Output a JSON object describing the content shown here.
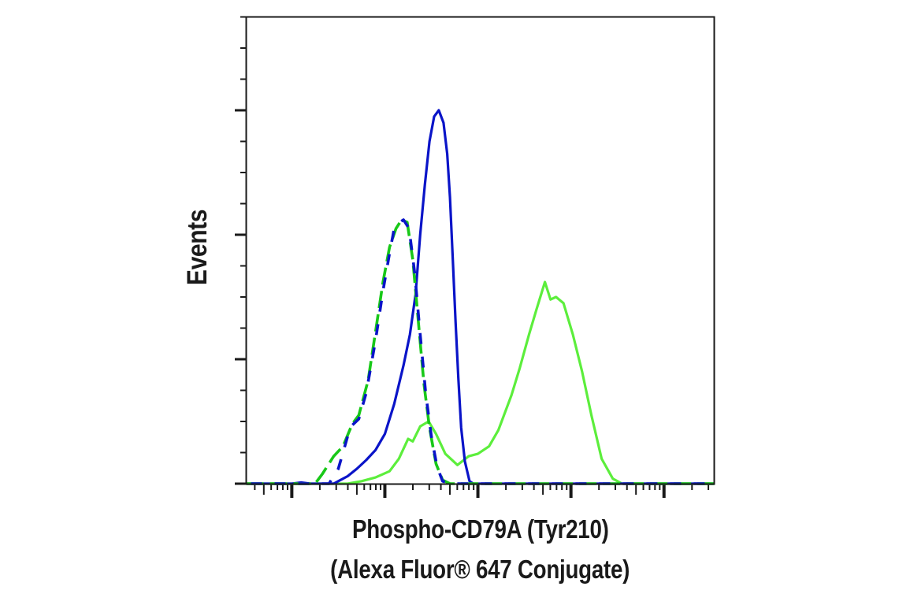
{
  "chart_data": {
    "type": "line",
    "subtype": "flow cytometry histogram overlay",
    "title": "",
    "xlabel": "Phospho-CD79A (Tyr210) (Alexa Fluor® 647 Conjugate)",
    "xlabel_lines": [
      "Phospho-CD79A (Tyr210)",
      "(Alexa Fluor® 647 Conjugate)"
    ],
    "ylabel": "Events",
    "x_scale": "log",
    "x_tick_labels": [],
    "y_tick_labels": [],
    "x_units_note": "x in log-decade index (major ticks at 1,2,3,4,5; unlabeled)",
    "y_units_note": "y in relative event units (major ticks every 100; unlabeled)",
    "xlim": [
      0.51,
      5.54
    ],
    "ylim": [
      0,
      375
    ],
    "x_major_ticks": [
      1,
      2,
      3,
      4,
      5
    ],
    "y_major_ticks": [
      0,
      100,
      200,
      300
    ],
    "y_minor_step": 25,
    "grid": false,
    "legend": null,
    "series": [
      {
        "name": "blue-solid",
        "color": "#0a14c8",
        "style": "solid",
        "points": [
          [
            0.51,
            0
          ],
          [
            0.82,
            0
          ],
          [
            1.0,
            0
          ],
          [
            1.1,
            1
          ],
          [
            1.2,
            0
          ],
          [
            1.45,
            0
          ],
          [
            1.5,
            2
          ],
          [
            1.6,
            6
          ],
          [
            1.7,
            12
          ],
          [
            1.8,
            19
          ],
          [
            1.9,
            27
          ],
          [
            2.0,
            40
          ],
          [
            2.1,
            64
          ],
          [
            2.2,
            95
          ],
          [
            2.27,
            120
          ],
          [
            2.33,
            152
          ],
          [
            2.38,
            200
          ],
          [
            2.43,
            240
          ],
          [
            2.48,
            275
          ],
          [
            2.53,
            295
          ],
          [
            2.58,
            300
          ],
          [
            2.63,
            290
          ],
          [
            2.67,
            265
          ],
          [
            2.7,
            230
          ],
          [
            2.73,
            180
          ],
          [
            2.76,
            130
          ],
          [
            2.79,
            85
          ],
          [
            2.82,
            45
          ],
          [
            2.86,
            18
          ],
          [
            2.91,
            2
          ],
          [
            2.95,
            0
          ],
          [
            5.54,
            0
          ]
        ]
      },
      {
        "name": "blue-dashed",
        "color": "#0a14c8",
        "style": "dashed-alternating",
        "points": [
          [
            0.51,
            0
          ],
          [
            0.82,
            0
          ],
          [
            1.0,
            0
          ],
          [
            1.2,
            0
          ],
          [
            1.4,
            0
          ],
          [
            1.5,
            12
          ],
          [
            1.6,
            38
          ],
          [
            1.65,
            47
          ],
          [
            1.72,
            52
          ],
          [
            1.8,
            73
          ],
          [
            1.9,
            115
          ],
          [
            1.98,
            155
          ],
          [
            2.05,
            185
          ],
          [
            2.1,
            205
          ],
          [
            2.16,
            210
          ],
          [
            2.2,
            212
          ],
          [
            2.26,
            205
          ],
          [
            2.32,
            170
          ],
          [
            2.38,
            120
          ],
          [
            2.44,
            72
          ],
          [
            2.5,
            38
          ],
          [
            2.56,
            14
          ],
          [
            2.62,
            2
          ],
          [
            2.7,
            0
          ],
          [
            5.54,
            0
          ]
        ]
      },
      {
        "name": "green-dashed",
        "color": "#18c818",
        "style": "dashed-alternating",
        "points": [
          [
            0.51,
            0
          ],
          [
            1.0,
            0
          ],
          [
            1.25,
            0
          ],
          [
            1.33,
            8
          ],
          [
            1.45,
            22
          ],
          [
            1.55,
            30
          ],
          [
            1.65,
            48
          ],
          [
            1.72,
            55
          ],
          [
            1.82,
            83
          ],
          [
            1.9,
            122
          ],
          [
            1.98,
            162
          ],
          [
            2.05,
            190
          ],
          [
            2.12,
            205
          ],
          [
            2.18,
            212
          ],
          [
            2.24,
            210
          ],
          [
            2.3,
            180
          ],
          [
            2.36,
            130
          ],
          [
            2.42,
            80
          ],
          [
            2.48,
            45
          ],
          [
            2.55,
            16
          ],
          [
            2.62,
            3
          ],
          [
            2.7,
            0
          ],
          [
            5.54,
            0
          ]
        ]
      },
      {
        "name": "green-solid",
        "color": "#5cee3c",
        "style": "solid",
        "points": [
          [
            0.51,
            0
          ],
          [
            1.6,
            0
          ],
          [
            1.75,
            2
          ],
          [
            1.9,
            5
          ],
          [
            2.05,
            10
          ],
          [
            2.15,
            20
          ],
          [
            2.25,
            36
          ],
          [
            2.3,
            34
          ],
          [
            2.38,
            46
          ],
          [
            2.47,
            50
          ],
          [
            2.55,
            40
          ],
          [
            2.65,
            24
          ],
          [
            2.78,
            15
          ],
          [
            2.9,
            22
          ],
          [
            3.0,
            24
          ],
          [
            3.12,
            30
          ],
          [
            3.22,
            43
          ],
          [
            3.36,
            71
          ],
          [
            3.45,
            93
          ],
          [
            3.55,
            120
          ],
          [
            3.63,
            140
          ],
          [
            3.72,
            162
          ],
          [
            3.78,
            148
          ],
          [
            3.84,
            150
          ],
          [
            3.92,
            145
          ],
          [
            4.02,
            120
          ],
          [
            4.12,
            90
          ],
          [
            4.22,
            55
          ],
          [
            4.33,
            20
          ],
          [
            4.45,
            4
          ],
          [
            4.55,
            0
          ],
          [
            5.54,
            0
          ]
        ]
      }
    ]
  },
  "axes": {
    "ylabel": "Events",
    "xlabel_line1": "Phospho-CD79A (Tyr210)",
    "xlabel_line2": "(Alexa Fluor® 647 Conjugate)"
  }
}
